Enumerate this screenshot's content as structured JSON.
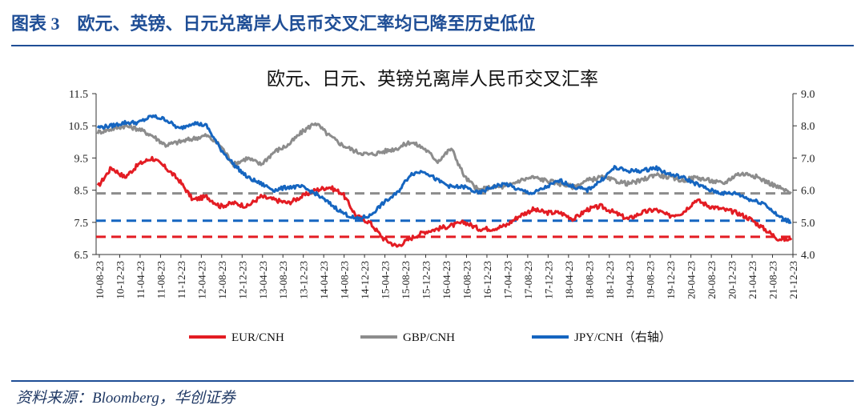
{
  "figure": {
    "label": "图表 3",
    "caption": "欧元、英镑、日元兑离岸人民币交叉汇率均已降至历史低位",
    "source": "资料来源：Bloomberg，华创证券"
  },
  "colors": {
    "eur": "#e31c23",
    "gbp": "#8c8c8c",
    "jpy": "#1565c0",
    "header": "#1f4e96"
  },
  "chart_data": {
    "type": "line",
    "title": "欧元、日元、英镑兑离岸人民币交叉汇率",
    "left_axis": {
      "ylim": [
        6.5,
        11.5
      ],
      "ticks": [
        "11.5",
        "10.5",
        "9.5",
        "8.5",
        "7.5",
        "6.5"
      ]
    },
    "right_axis": {
      "ylim": [
        4.0,
        9.0
      ],
      "ticks": [
        "9.0",
        "8.0",
        "7.0",
        "6.0",
        "5.0",
        "4.0"
      ]
    },
    "x_ticks": [
      "10-08-23",
      "10-12-23",
      "11-04-23",
      "11-08-23",
      "11-12-23",
      "12-04-23",
      "12-08-23",
      "12-12-23",
      "13-04-23",
      "13-08-23",
      "13-12-23",
      "14-04-23",
      "14-08-23",
      "14-12-23",
      "15-04-23",
      "15-08-23",
      "15-12-23",
      "16-04-23",
      "16-08-23",
      "16-12-23",
      "17-04-23",
      "17-08-23",
      "17-12-23",
      "18-04-23",
      "18-08-23",
      "18-12-23",
      "19-04-23",
      "19-08-23",
      "19-12-23",
      "20-04-23",
      "20-08-23",
      "20-12-23",
      "21-04-23",
      "21-08-23",
      "21-12-23"
    ],
    "series": [
      {
        "name": "EUR/CNH",
        "axis": "left",
        "color": "#e31c23",
        "values": [
          8.6,
          9.2,
          8.9,
          9.3,
          9.5,
          9.2,
          8.8,
          8.2,
          8.3,
          8.0,
          8.1,
          8.0,
          8.3,
          8.2,
          8.1,
          8.3,
          8.5,
          8.6,
          8.4,
          7.7,
          7.5,
          7.0,
          6.75,
          7.0,
          7.2,
          7.3,
          7.4,
          7.5,
          7.3,
          7.3,
          7.4,
          7.7,
          7.9,
          7.8,
          7.8,
          7.6,
          7.9,
          8.0,
          7.8,
          7.6,
          7.8,
          7.9,
          7.7,
          7.8,
          8.2,
          8.0,
          7.9,
          7.8,
          7.6,
          7.3,
          7.0,
          6.95
        ]
      },
      {
        "name": "GBP/CNH",
        "axis": "left",
        "color": "#8c8c8c",
        "values": [
          10.3,
          10.4,
          10.5,
          10.4,
          10.2,
          9.9,
          10.0,
          10.1,
          10.2,
          9.9,
          9.3,
          9.5,
          9.3,
          9.7,
          9.9,
          10.3,
          10.6,
          10.2,
          9.9,
          9.7,
          9.6,
          9.7,
          9.8,
          10.0,
          9.8,
          9.4,
          9.8,
          8.9,
          8.5,
          8.6,
          8.6,
          8.8,
          8.9,
          8.8,
          8.7,
          8.6,
          8.8,
          8.9,
          8.8,
          8.7,
          8.8,
          9.0,
          8.9,
          8.8,
          8.9,
          8.8,
          8.7,
          9.0,
          9.0,
          8.8,
          8.6,
          8.4
        ]
      },
      {
        "name": "JPY/CNH（右轴）",
        "axis": "right",
        "color": "#1565c0",
        "values": [
          7.95,
          8.0,
          8.1,
          8.1,
          8.3,
          8.2,
          7.9,
          8.1,
          8.0,
          7.3,
          6.8,
          6.4,
          6.2,
          6.0,
          6.1,
          6.1,
          5.9,
          5.6,
          5.3,
          5.1,
          5.2,
          5.6,
          5.9,
          6.5,
          6.6,
          6.3,
          6.1,
          6.1,
          5.9,
          6.1,
          6.2,
          6.0,
          5.9,
          6.1,
          6.3,
          6.1,
          6.0,
          6.3,
          6.7,
          6.6,
          6.6,
          6.7,
          6.5,
          6.4,
          6.2,
          6.0,
          5.9,
          5.9,
          5.7,
          5.6,
          5.2,
          5.0
        ]
      }
    ],
    "reference_lines": [
      {
        "axis": "left",
        "value": 8.4,
        "color": "#8c8c8c"
      },
      {
        "axis": "left",
        "value": 7.55,
        "color": "#1565c0"
      },
      {
        "axis": "left",
        "value": 7.05,
        "color": "#e31c23"
      }
    ],
    "legend": [
      {
        "label": "EUR/CNH",
        "color": "#e31c23"
      },
      {
        "label": "GBP/CNH",
        "color": "#8c8c8c"
      },
      {
        "label": "JPY/CNH（右轴）",
        "color": "#1565c0"
      }
    ],
    "legend_position": "bottom",
    "grid": false
  }
}
